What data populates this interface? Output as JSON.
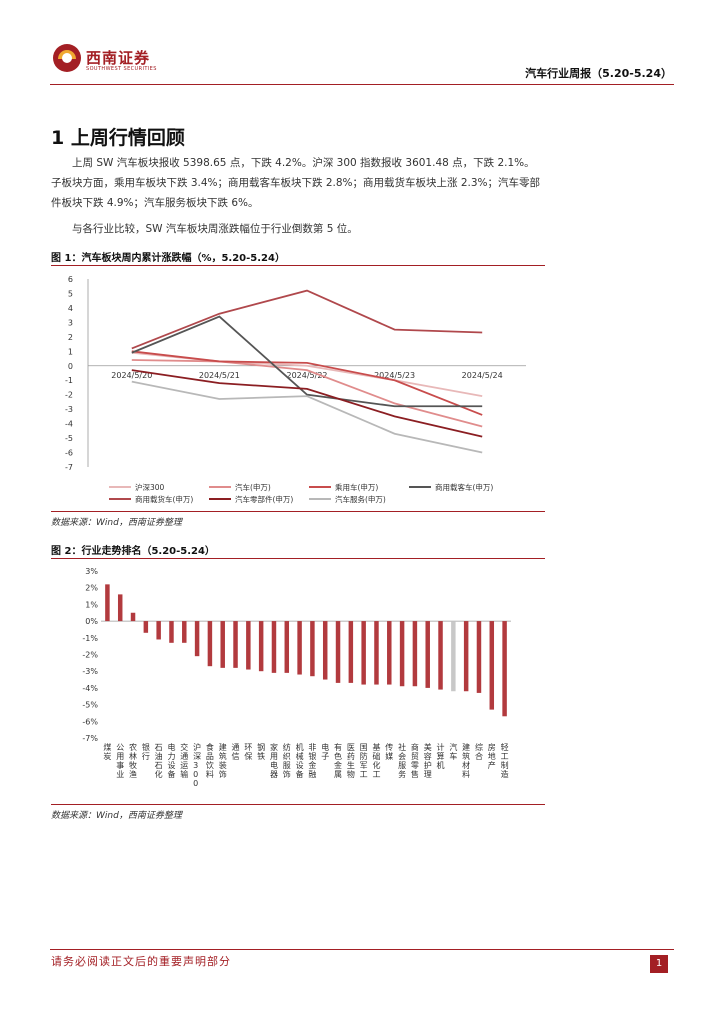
{
  "header": {
    "logo_cn": "西南证券",
    "logo_en": "SOUTHWEST SECURITIES",
    "report_title": "汽车行业周报（5.20-5.24）"
  },
  "section": {
    "title": "1 上周行情回顾",
    "para1": "上周 SW 汽车板块报收 5398.65 点，下跌 4.2%。沪深 300 指数报收 3601.48 点，下跌 2.1%。子板块方面，乘用车板块下跌 3.4%；商用载客车板块下跌 2.8%；商用载货车板块上涨 2.3%；汽车零部件板块下跌 4.9%；汽车服务板块下跌 6%。",
    "para2": "与各行业比较，SW 汽车板块周涨跌幅位于行业倒数第 5 位。"
  },
  "figure1": {
    "title": "图 1：汽车板块周内累计涨跌幅（%，5.20-5.24）",
    "source": "数据来源：Wind，西南证券整理"
  },
  "figure2": {
    "title": "图 2：行业走势排名（5.20-5.24）",
    "source": "数据来源：Wind，西南证券整理"
  },
  "chart_data": [
    {
      "type": "line",
      "x": [
        "2024/5/20",
        "2024/5/21",
        "2024/5/22",
        "2024/5/23",
        "2024/5/24"
      ],
      "ylim": [
        -7,
        6
      ],
      "yticks": [
        6,
        5,
        4,
        3,
        2,
        1,
        0,
        -1,
        -2,
        -3,
        -4,
        -5,
        -6,
        -7
      ],
      "grid": false,
      "legend_position": "bottom",
      "series": [
        {
          "name": "沪深300",
          "color": "#e8b8b8",
          "values": [
            0.9,
            0.3,
            0.0,
            -1.0,
            -2.1
          ]
        },
        {
          "name": "汽车(申万)",
          "color": "#e08c8c",
          "values": [
            0.4,
            0.3,
            -0.3,
            -2.6,
            -4.2
          ]
        },
        {
          "name": "乘用车(申万)",
          "color": "#c84c4c",
          "values": [
            1.0,
            0.3,
            0.2,
            -1.0,
            -3.4
          ]
        },
        {
          "name": "商用载客车(申万)",
          "color": "#555555",
          "values": [
            0.9,
            3.4,
            -2.0,
            -2.8,
            -2.8
          ]
        },
        {
          "name": "商用载货车(申万)",
          "color": "#b0484c",
          "values": [
            1.2,
            3.6,
            5.2,
            2.5,
            2.3
          ]
        },
        {
          "name": "汽车零部件(申万)",
          "color": "#8b1e22",
          "values": [
            -0.3,
            -1.2,
            -1.6,
            -3.5,
            -4.9
          ]
        },
        {
          "name": "汽车服务(申万)",
          "color": "#b8b8b8",
          "values": [
            -1.1,
            -2.3,
            -2.1,
            -4.7,
            -6.0
          ]
        }
      ]
    },
    {
      "type": "bar",
      "ylim": [
        -7,
        3
      ],
      "yticks": [
        "3%",
        "2%",
        "1%",
        "0%",
        "-1%",
        "-2%",
        "-3%",
        "-4%",
        "-5%",
        "-6%",
        "-7%"
      ],
      "bar_color": "#b23a3e",
      "highlight_color": "#c8c8c8",
      "highlight_category": "汽车",
      "categories": [
        "煤炭",
        "公用事业",
        "农林牧渔",
        "银行",
        "石油石化",
        "电力设备",
        "交通运输",
        "沪深300",
        "食品饮料",
        "建筑装饰",
        "通信",
        "环保",
        "钢铁",
        "家用电器",
        "纺织服饰",
        "机械设备",
        "非银金融",
        "电子",
        "有色金属",
        "医药生物",
        "国防军工",
        "基础化工",
        "传媒",
        "社会服务",
        "商贸零售",
        "美容护理",
        "计算机",
        "汽车",
        "建筑材料",
        "综合",
        "房地产",
        "轻工制造"
      ],
      "values": [
        2.2,
        1.6,
        0.5,
        -0.7,
        -1.1,
        -1.3,
        -1.3,
        -2.1,
        -2.7,
        -2.8,
        -2.8,
        -2.9,
        -3.0,
        -3.1,
        -3.1,
        -3.2,
        -3.3,
        -3.5,
        -3.7,
        -3.7,
        -3.8,
        -3.8,
        -3.8,
        -3.9,
        -3.9,
        -4.0,
        -4.1,
        -4.2,
        -4.2,
        -4.3,
        -5.3,
        -5.7
      ]
    }
  ],
  "footer": {
    "notice": "请务必阅读正文后的重要声明部分",
    "page_number": "1"
  }
}
